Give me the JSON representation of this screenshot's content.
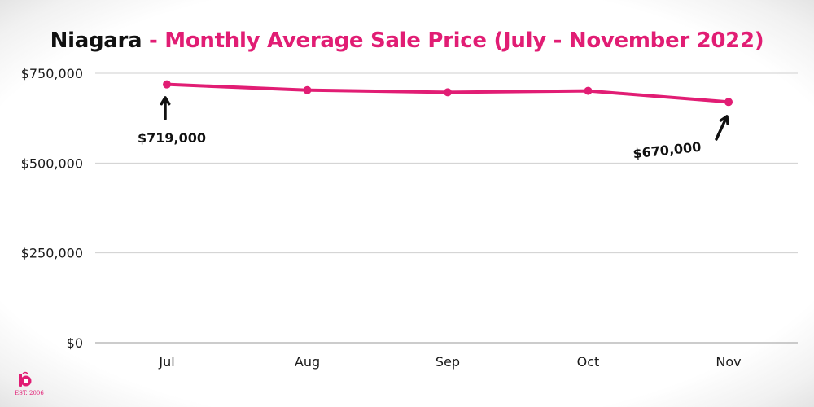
{
  "chart_data": {
    "type": "line",
    "title_region": "Niagara",
    "title_rest": " - Monthly Average Sale Price (July - November 2022)",
    "categories": [
      "Jul",
      "Aug",
      "Sep",
      "Oct",
      "Nov"
    ],
    "series": [
      {
        "values": [
          719000,
          703000,
          697000,
          701000,
          670000
        ]
      }
    ],
    "ylim": [
      0,
      750000
    ],
    "y_ticks": [
      {
        "value": 0,
        "label": "$0"
      },
      {
        "value": 250000,
        "label": "$250,000"
      },
      {
        "value": 500000,
        "label": "$500,000"
      },
      {
        "value": 750000,
        "label": "$750,000"
      }
    ],
    "grid": true,
    "line_color": "#e11d74",
    "annotations": [
      {
        "category": "Jul",
        "label": "$719,000"
      },
      {
        "category": "Nov",
        "label": "$670,000"
      }
    ]
  },
  "logo": {
    "text": "EST. 2006",
    "color": "#e11d74"
  }
}
